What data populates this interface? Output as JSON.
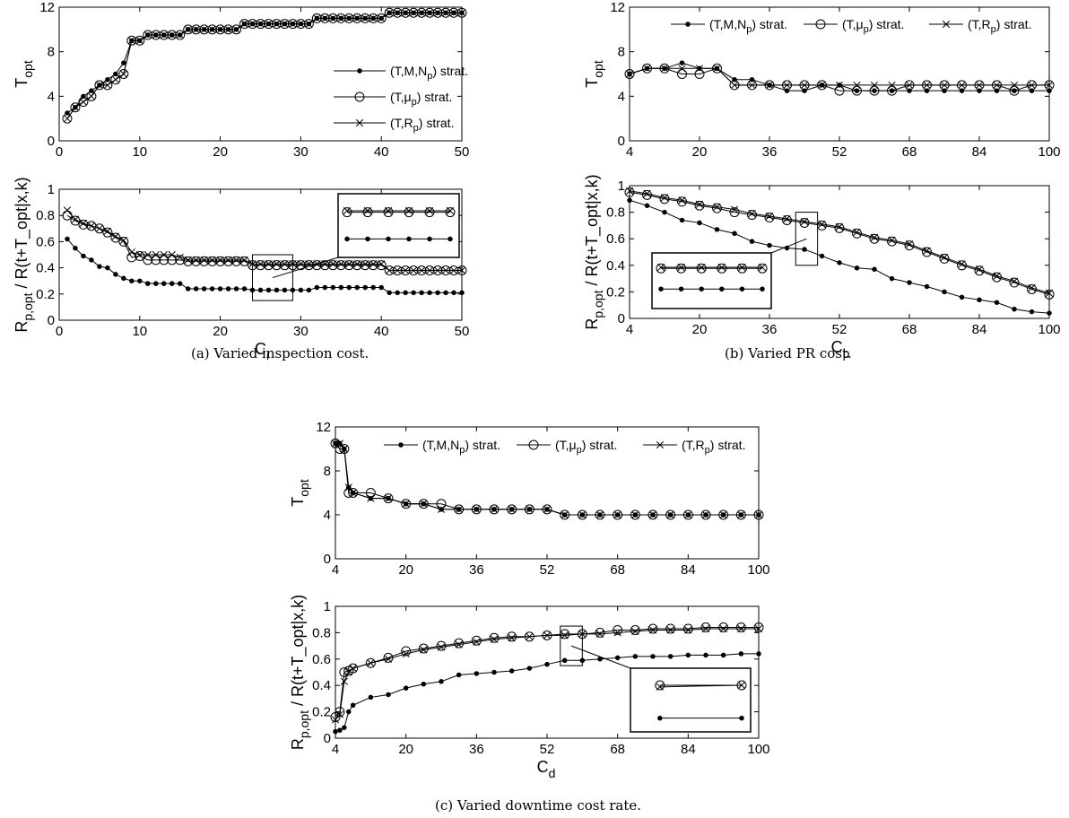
{
  "captions": {
    "a": "(a) Varied inspection cost.",
    "b": "(b) Varied PR cost.",
    "c": "(c) Varied downtime cost rate."
  },
  "legend_labels": [
    "(T,M,N_p) strat.",
    "(T,μ_p) strat.",
    "(T,R_p) strat."
  ],
  "chart_data": [
    {
      "id": "a-top",
      "type": "line",
      "ylabel": "T_opt",
      "xlabel": "",
      "xlim": [
        0,
        50
      ],
      "ylim": [
        0,
        12
      ],
      "xticks": [
        0,
        10,
        20,
        30,
        40,
        50
      ],
      "yticks": [
        0,
        4,
        8,
        12
      ],
      "legend": "right",
      "x": [
        1,
        2,
        3,
        4,
        5,
        6,
        7,
        8,
        9,
        10,
        11,
        12,
        13,
        14,
        15,
        16,
        17,
        18,
        19,
        20,
        21,
        22,
        23,
        24,
        25,
        26,
        27,
        28,
        29,
        30,
        31,
        32,
        33,
        34,
        35,
        36,
        37,
        38,
        39,
        40,
        41,
        42,
        43,
        44,
        45,
        46,
        47,
        48,
        49,
        50
      ],
      "series": [
        {
          "name": "(T,M,N_p) strat.",
          "marker": "dot",
          "values": [
            2.5,
            3,
            4,
            4.5,
            5,
            5.5,
            6,
            7,
            9,
            9,
            9.5,
            9.5,
            9.5,
            9.5,
            9.5,
            10,
            10,
            10,
            10,
            10,
            10,
            10,
            10.5,
            10.5,
            10.5,
            10.5,
            10.5,
            10.5,
            10.5,
            10.5,
            10.5,
            11,
            11,
            11,
            11,
            11,
            11,
            11,
            11,
            11,
            11.5,
            11.5,
            11.5,
            11.5,
            11.5,
            11.5,
            11.5,
            11.5,
            11.5,
            11.5
          ]
        },
        {
          "name": "(T,μ_p) strat.",
          "marker": "circle",
          "values": [
            2,
            3,
            3.5,
            4,
            5,
            5,
            5.5,
            6,
            9,
            9,
            9.5,
            9.5,
            9.5,
            9.5,
            9.5,
            10,
            10,
            10,
            10,
            10,
            10,
            10,
            10.5,
            10.5,
            10.5,
            10.5,
            10.5,
            10.5,
            10.5,
            10.5,
            10.5,
            11,
            11,
            11,
            11,
            11,
            11,
            11,
            11,
            11,
            11.5,
            11.5,
            11.5,
            11.5,
            11.5,
            11.5,
            11.5,
            11.5,
            11.5,
            11.5
          ]
        },
        {
          "name": "(T,R_p) strat.",
          "marker": "x",
          "values": [
            2,
            3,
            3.5,
            4,
            5,
            5,
            5.5,
            6,
            9,
            9,
            9.5,
            9.5,
            9.5,
            9.5,
            9.5,
            10,
            10,
            10,
            10,
            10,
            10,
            10,
            10.5,
            10.5,
            10.5,
            10.5,
            10.5,
            10.5,
            10.5,
            10.5,
            10.5,
            11,
            11,
            11,
            11,
            11,
            11,
            11,
            11,
            11,
            11.5,
            11.5,
            11.5,
            11.5,
            11.5,
            11.5,
            11.5,
            11.5,
            11.5,
            11.5
          ]
        }
      ]
    },
    {
      "id": "a-bot",
      "type": "line",
      "ylabel": "R_p,opt / R(t+T_opt|x,k)",
      "xlabel": "C_i",
      "xlim": [
        0,
        50
      ],
      "ylim": [
        0,
        1
      ],
      "xticks": [
        0,
        10,
        20,
        30,
        40,
        50
      ],
      "yticks": [
        0,
        0.2,
        0.4,
        0.6,
        0.8,
        1
      ],
      "inset_x": [
        24,
        29
      ],
      "x": [
        1,
        2,
        3,
        4,
        5,
        6,
        7,
        8,
        9,
        10,
        11,
        12,
        13,
        14,
        15,
        16,
        17,
        18,
        19,
        20,
        21,
        22,
        23,
        24,
        25,
        26,
        27,
        28,
        29,
        30,
        31,
        32,
        33,
        34,
        35,
        36,
        37,
        38,
        39,
        40,
        41,
        42,
        43,
        44,
        45,
        46,
        47,
        48,
        49,
        50
      ],
      "series": [
        {
          "name": "(T,M,N_p) strat.",
          "marker": "dot",
          "values": [
            0.62,
            0.55,
            0.49,
            0.46,
            0.41,
            0.4,
            0.35,
            0.32,
            0.3,
            0.3,
            0.28,
            0.28,
            0.28,
            0.28,
            0.28,
            0.24,
            0.24,
            0.24,
            0.24,
            0.24,
            0.24,
            0.24,
            0.24,
            0.23,
            0.23,
            0.23,
            0.23,
            0.23,
            0.23,
            0.23,
            0.23,
            0.25,
            0.25,
            0.25,
            0.25,
            0.25,
            0.25,
            0.25,
            0.25,
            0.25,
            0.21,
            0.21,
            0.21,
            0.21,
            0.21,
            0.21,
            0.21,
            0.21,
            0.21,
            0.21
          ]
        },
        {
          "name": "(T,μ_p) strat.",
          "marker": "circle",
          "values": [
            0.8,
            0.76,
            0.73,
            0.72,
            0.7,
            0.67,
            0.63,
            0.6,
            0.48,
            0.49,
            0.46,
            0.46,
            0.46,
            0.46,
            0.46,
            0.45,
            0.45,
            0.45,
            0.45,
            0.45,
            0.45,
            0.45,
            0.45,
            0.42,
            0.42,
            0.42,
            0.42,
            0.42,
            0.42,
            0.42,
            0.42,
            0.42,
            0.42,
            0.42,
            0.42,
            0.42,
            0.42,
            0.42,
            0.42,
            0.42,
            0.38,
            0.38,
            0.38,
            0.38,
            0.38,
            0.38,
            0.38,
            0.38,
            0.38,
            0.38
          ]
        },
        {
          "name": "(T,R_p) strat.",
          "marker": "x",
          "values": [
            0.84,
            0.77,
            0.74,
            0.72,
            0.7,
            0.68,
            0.64,
            0.61,
            0.52,
            0.5,
            0.5,
            0.5,
            0.5,
            0.5,
            0.48,
            0.46,
            0.46,
            0.46,
            0.46,
            0.46,
            0.46,
            0.46,
            0.46,
            0.43,
            0.43,
            0.43,
            0.43,
            0.43,
            0.43,
            0.43,
            0.43,
            0.43,
            0.43,
            0.43,
            0.43,
            0.43,
            0.43,
            0.43,
            0.43,
            0.43,
            0.38,
            0.38,
            0.38,
            0.38,
            0.38,
            0.38,
            0.38,
            0.38,
            0.38,
            0.38
          ]
        }
      ]
    },
    {
      "id": "b-top",
      "type": "line",
      "ylabel": "T_opt",
      "xlabel": "",
      "xlim": [
        4,
        100
      ],
      "ylim": [
        0,
        12
      ],
      "xticks": [
        4,
        20,
        36,
        52,
        68,
        84,
        100
      ],
      "yticks": [
        0,
        4,
        8,
        12
      ],
      "legend": "top",
      "x": [
        4,
        8,
        12,
        16,
        20,
        24,
        28,
        32,
        36,
        40,
        44,
        48,
        52,
        56,
        60,
        64,
        68,
        72,
        76,
        80,
        84,
        88,
        92,
        96,
        100
      ],
      "series": [
        {
          "name": "(T,M,N_p) strat.",
          "marker": "dot",
          "values": [
            6,
            6.5,
            6.5,
            7,
            6.5,
            6.5,
            5.5,
            5.5,
            5,
            4.5,
            4.5,
            5,
            5,
            4.5,
            4.5,
            4.5,
            4.5,
            4.5,
            4.5,
            4.5,
            4.5,
            4.5,
            4.5,
            4.5,
            4.5
          ]
        },
        {
          "name": "(T,μ_p) strat.",
          "marker": "circle",
          "values": [
            6,
            6.5,
            6.5,
            6,
            6,
            6.5,
            5,
            5,
            5,
            5,
            5,
            5,
            4.5,
            4.5,
            4.5,
            4.5,
            5,
            5,
            5,
            5,
            5,
            5,
            4.5,
            5,
            5
          ]
        },
        {
          "name": "(T,R_p) strat.",
          "marker": "x",
          "values": [
            6,
            6.5,
            6.5,
            6.5,
            6.5,
            6.5,
            5,
            5,
            5,
            5,
            5,
            5,
            5,
            5,
            5,
            5,
            5,
            5,
            5,
            5,
            5,
            5,
            5,
            5,
            5
          ]
        }
      ]
    },
    {
      "id": "b-bot",
      "type": "line",
      "ylabel": "R_p,opt / R(t+T_opt|x,k)",
      "xlabel": "C_p",
      "xlim": [
        4,
        100
      ],
      "ylim": [
        0,
        1
      ],
      "xticks": [
        4,
        20,
        36,
        52,
        68,
        84,
        100
      ],
      "yticks": [
        0,
        0.2,
        0.4,
        0.6,
        0.8,
        1
      ],
      "inset_x": [
        42,
        47
      ],
      "x": [
        4,
        8,
        12,
        16,
        20,
        24,
        28,
        32,
        36,
        40,
        44,
        48,
        52,
        56,
        60,
        64,
        68,
        72,
        76,
        80,
        84,
        88,
        92,
        96,
        100
      ],
      "series": [
        {
          "name": "(T,M,N_p) strat.",
          "marker": "dot",
          "values": [
            0.89,
            0.85,
            0.8,
            0.74,
            0.72,
            0.67,
            0.64,
            0.58,
            0.55,
            0.53,
            0.52,
            0.47,
            0.42,
            0.38,
            0.37,
            0.3,
            0.27,
            0.24,
            0.2,
            0.16,
            0.14,
            0.12,
            0.07,
            0.05,
            0.04
          ]
        },
        {
          "name": "(T,μ_p) strat.",
          "marker": "circle",
          "values": [
            0.95,
            0.93,
            0.9,
            0.88,
            0.85,
            0.83,
            0.8,
            0.78,
            0.76,
            0.74,
            0.72,
            0.7,
            0.68,
            0.64,
            0.6,
            0.58,
            0.55,
            0.5,
            0.45,
            0.4,
            0.36,
            0.31,
            0.27,
            0.22,
            0.18
          ]
        },
        {
          "name": "(T,R_p) strat.",
          "marker": "x",
          "values": [
            0.96,
            0.94,
            0.91,
            0.89,
            0.86,
            0.84,
            0.82,
            0.79,
            0.77,
            0.75,
            0.73,
            0.71,
            0.69,
            0.65,
            0.61,
            0.59,
            0.56,
            0.51,
            0.46,
            0.41,
            0.37,
            0.32,
            0.28,
            0.23,
            0.19
          ]
        }
      ]
    },
    {
      "id": "c-top",
      "type": "line",
      "ylabel": "T_opt",
      "xlabel": "",
      "xlim": [
        4,
        100
      ],
      "ylim": [
        0,
        12
      ],
      "xticks": [
        4,
        20,
        36,
        52,
        68,
        84,
        100
      ],
      "yticks": [
        0,
        4,
        8,
        12
      ],
      "legend": "top",
      "x": [
        4,
        5,
        6,
        7,
        8,
        12,
        16,
        20,
        24,
        28,
        32,
        36,
        40,
        44,
        48,
        52,
        56,
        60,
        64,
        68,
        72,
        76,
        80,
        84,
        88,
        92,
        96,
        100
      ],
      "series": [
        {
          "name": "(T,M,N_p) strat.",
          "marker": "dot",
          "values": [
            10.5,
            10.5,
            10,
            6.5,
            6,
            5.5,
            5.5,
            5,
            5,
            4.5,
            4.5,
            4.5,
            4.5,
            4.5,
            4.5,
            4.5,
            4,
            4,
            4,
            4,
            4,
            4,
            4,
            4,
            4,
            4,
            4,
            4
          ]
        },
        {
          "name": "(T,μ_p) strat.",
          "marker": "circle",
          "values": [
            10.5,
            10,
            10,
            6,
            6,
            6,
            5.5,
            5,
            5,
            5,
            4.5,
            4.5,
            4.5,
            4.5,
            4.5,
            4.5,
            4,
            4,
            4,
            4,
            4,
            4,
            4,
            4,
            4,
            4,
            4,
            4
          ]
        },
        {
          "name": "(T,R_p) strat.",
          "marker": "x",
          "values": [
            10.5,
            10.5,
            10,
            6.5,
            6,
            5.5,
            5.5,
            5,
            5,
            4.5,
            4.5,
            4.5,
            4.5,
            4.5,
            4.5,
            4.5,
            4,
            4,
            4,
            4,
            4,
            4,
            4,
            4,
            4,
            4,
            4,
            4
          ]
        }
      ]
    },
    {
      "id": "c-bot",
      "type": "line",
      "ylabel": "R_p,opt / R(t+T_opt|x,k)",
      "xlabel": "C_d",
      "xlim": [
        4,
        100
      ],
      "ylim": [
        0,
        1
      ],
      "xticks": [
        4,
        20,
        36,
        52,
        68,
        84,
        100
      ],
      "yticks": [
        0,
        0.2,
        0.4,
        0.6,
        0.8,
        1
      ],
      "inset_x": [
        55,
        60
      ],
      "x": [
        4,
        5,
        6,
        7,
        8,
        12,
        16,
        20,
        24,
        28,
        32,
        36,
        40,
        44,
        48,
        52,
        56,
        60,
        64,
        68,
        72,
        76,
        80,
        84,
        88,
        92,
        96,
        100
      ],
      "series": [
        {
          "name": "(T,M,N_p) strat.",
          "marker": "dot",
          "values": [
            0.05,
            0.06,
            0.08,
            0.2,
            0.25,
            0.31,
            0.33,
            0.38,
            0.41,
            0.43,
            0.48,
            0.49,
            0.5,
            0.51,
            0.53,
            0.56,
            0.59,
            0.59,
            0.6,
            0.61,
            0.62,
            0.62,
            0.62,
            0.63,
            0.63,
            0.63,
            0.64,
            0.64
          ]
        },
        {
          "name": "(T,μ_p) strat.",
          "marker": "circle",
          "values": [
            0.16,
            0.2,
            0.5,
            0.51,
            0.53,
            0.57,
            0.61,
            0.66,
            0.68,
            0.7,
            0.72,
            0.74,
            0.76,
            0.77,
            0.77,
            0.78,
            0.79,
            0.79,
            0.8,
            0.82,
            0.82,
            0.83,
            0.83,
            0.83,
            0.84,
            0.84,
            0.84,
            0.84
          ]
        },
        {
          "name": "(T,R_p) strat.",
          "marker": "x",
          "values": [
            0.14,
            0.18,
            0.43,
            0.5,
            0.53,
            0.57,
            0.6,
            0.64,
            0.67,
            0.69,
            0.71,
            0.73,
            0.75,
            0.76,
            0.77,
            0.78,
            0.78,
            0.79,
            0.79,
            0.8,
            0.81,
            0.82,
            0.82,
            0.82,
            0.83,
            0.83,
            0.83,
            0.83
          ]
        }
      ]
    }
  ]
}
